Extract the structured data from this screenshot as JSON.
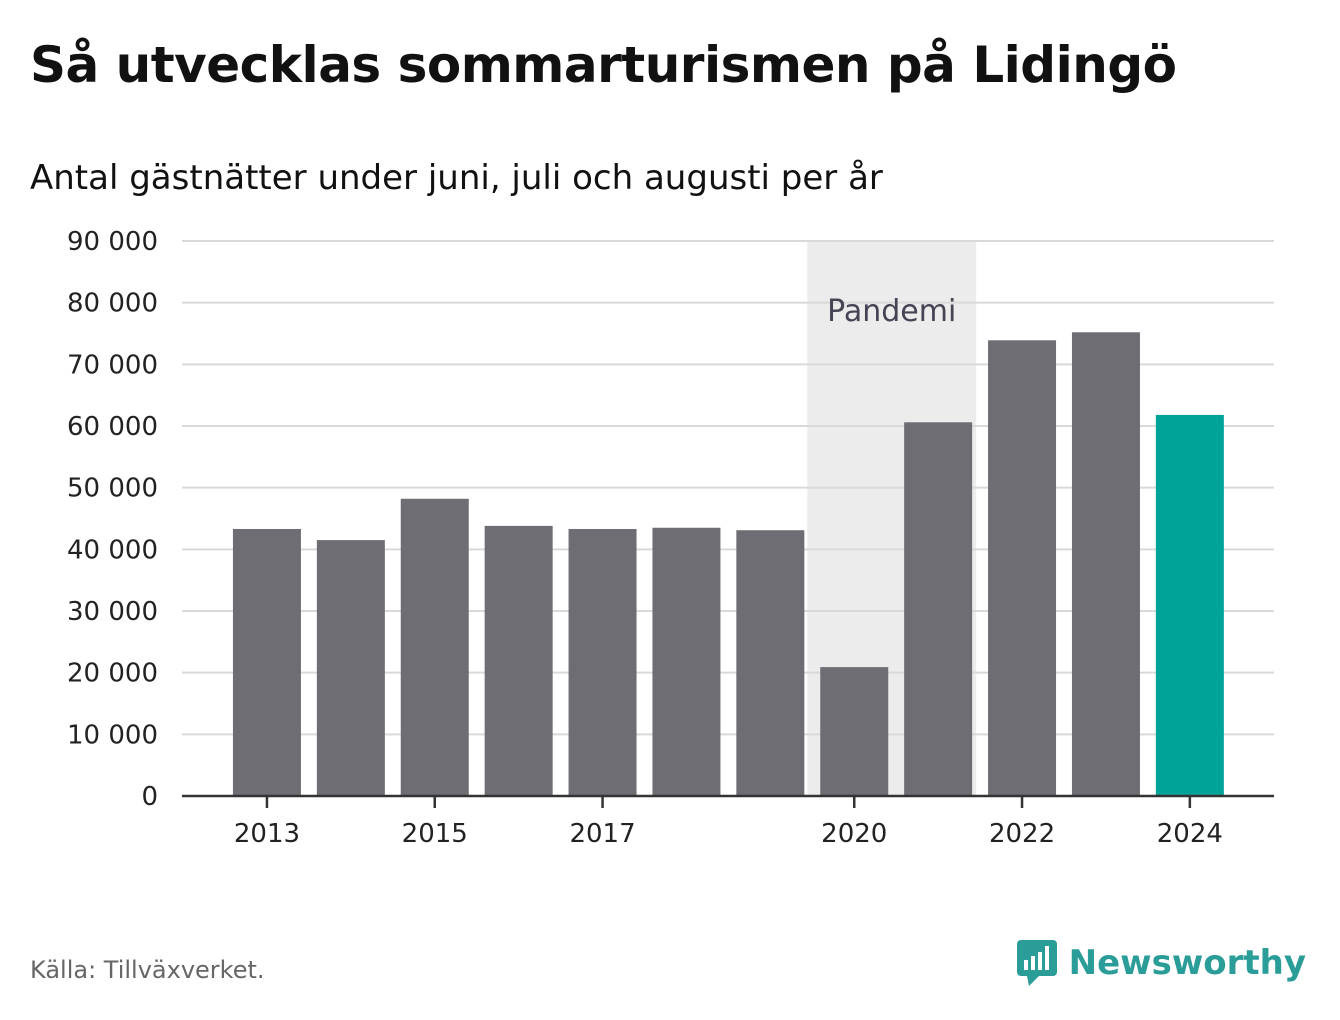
{
  "title": "Så utvecklas sommarturismen på Lidingö",
  "subtitle": "Antal gästnätter under juni, juli och augusti per år",
  "source": "Källa: Tillväxverket.",
  "brand": "Newsworthy",
  "colors": {
    "bar": "#6e6d73",
    "highlight": "#00a398",
    "shade": "#ececec",
    "grid": "#d9d9d9",
    "axis": "#333333",
    "brand": "#2a9d98"
  },
  "chart_data": {
    "type": "bar",
    "categories": [
      "2013",
      "2014",
      "2015",
      "2016",
      "2017",
      "2018",
      "2019",
      "2020",
      "2021",
      "2022",
      "2023",
      "2024"
    ],
    "values": [
      43300,
      41500,
      48200,
      43800,
      43300,
      43500,
      43100,
      20900,
      60600,
      73900,
      75200,
      61800
    ],
    "highlight_category": "2024",
    "x_tick_labels": [
      "2013",
      "2015",
      "2017",
      "2020",
      "2022",
      "2024"
    ],
    "y_ticks": [
      0,
      10000,
      20000,
      30000,
      40000,
      50000,
      60000,
      70000,
      80000,
      90000
    ],
    "y_tick_labels": [
      "0",
      "10 000",
      "20 000",
      "30 000",
      "40 000",
      "50 000",
      "60 000",
      "70 000",
      "80 000",
      "90 000"
    ],
    "ylim": [
      0,
      90000
    ],
    "grid": true,
    "xlabel": "",
    "ylabel": "",
    "annotation": {
      "label": "Pandemi",
      "from_category": "2020",
      "to_category": "2021"
    }
  }
}
